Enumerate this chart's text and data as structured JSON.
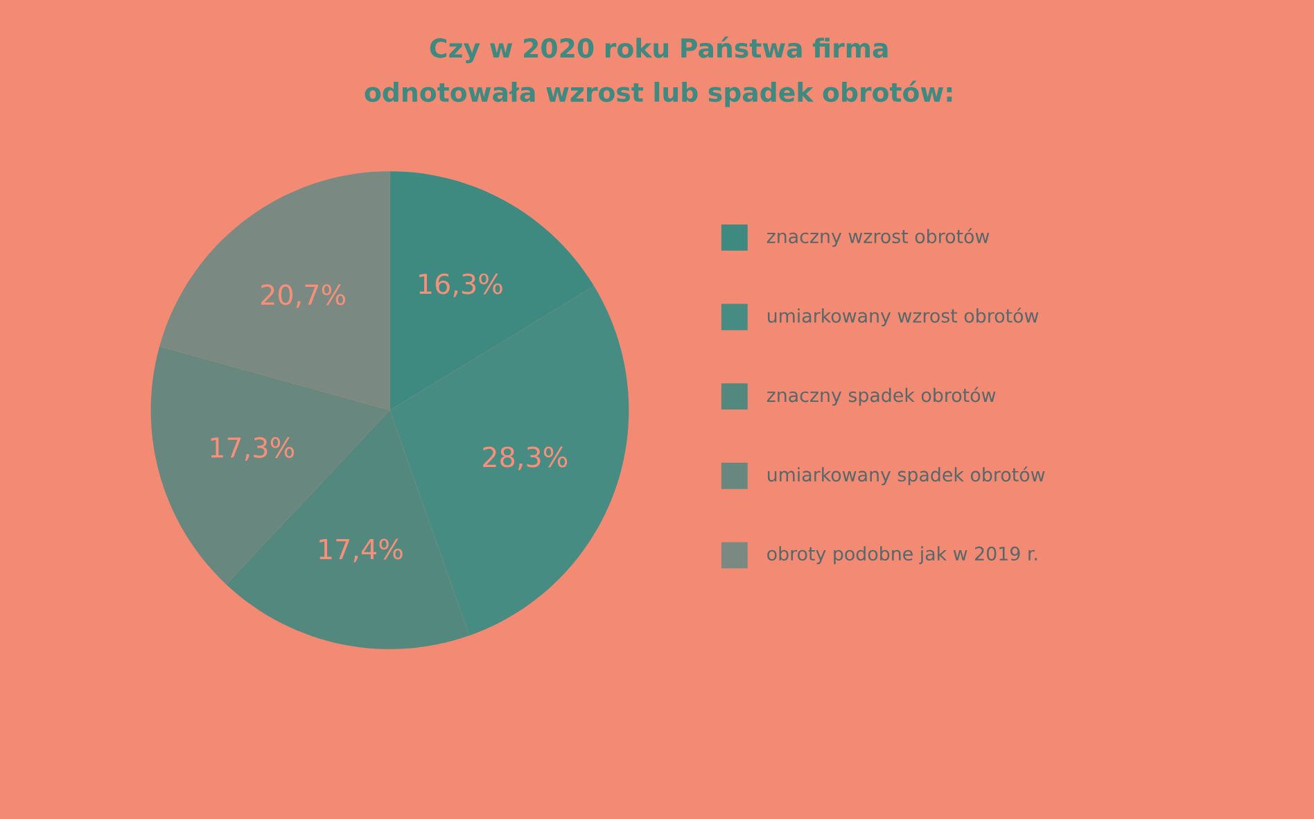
{
  "chart_data": {
    "type": "pie",
    "title": "Czy w 2020 roku Państwa firma odnotowała wzrost lub spadek obrotów:",
    "categories": [
      "znaczny wzrost obrotów",
      "umiarkowany wzrost obrotów",
      "znaczny spadek obrotów",
      "umiarkowany spadek obrotów",
      "obroty podobne jak w 2019 r."
    ],
    "values": [
      16.3,
      28.3,
      17.4,
      17.3,
      20.7
    ],
    "value_labels": [
      "16,3%",
      "28,3%",
      "17,4%",
      "17,3%",
      "20,7%"
    ],
    "colors": [
      "#3f8a80",
      "#468c83",
      "#53887f",
      "#68877f",
      "#7a8a82"
    ],
    "legend": "right"
  }
}
